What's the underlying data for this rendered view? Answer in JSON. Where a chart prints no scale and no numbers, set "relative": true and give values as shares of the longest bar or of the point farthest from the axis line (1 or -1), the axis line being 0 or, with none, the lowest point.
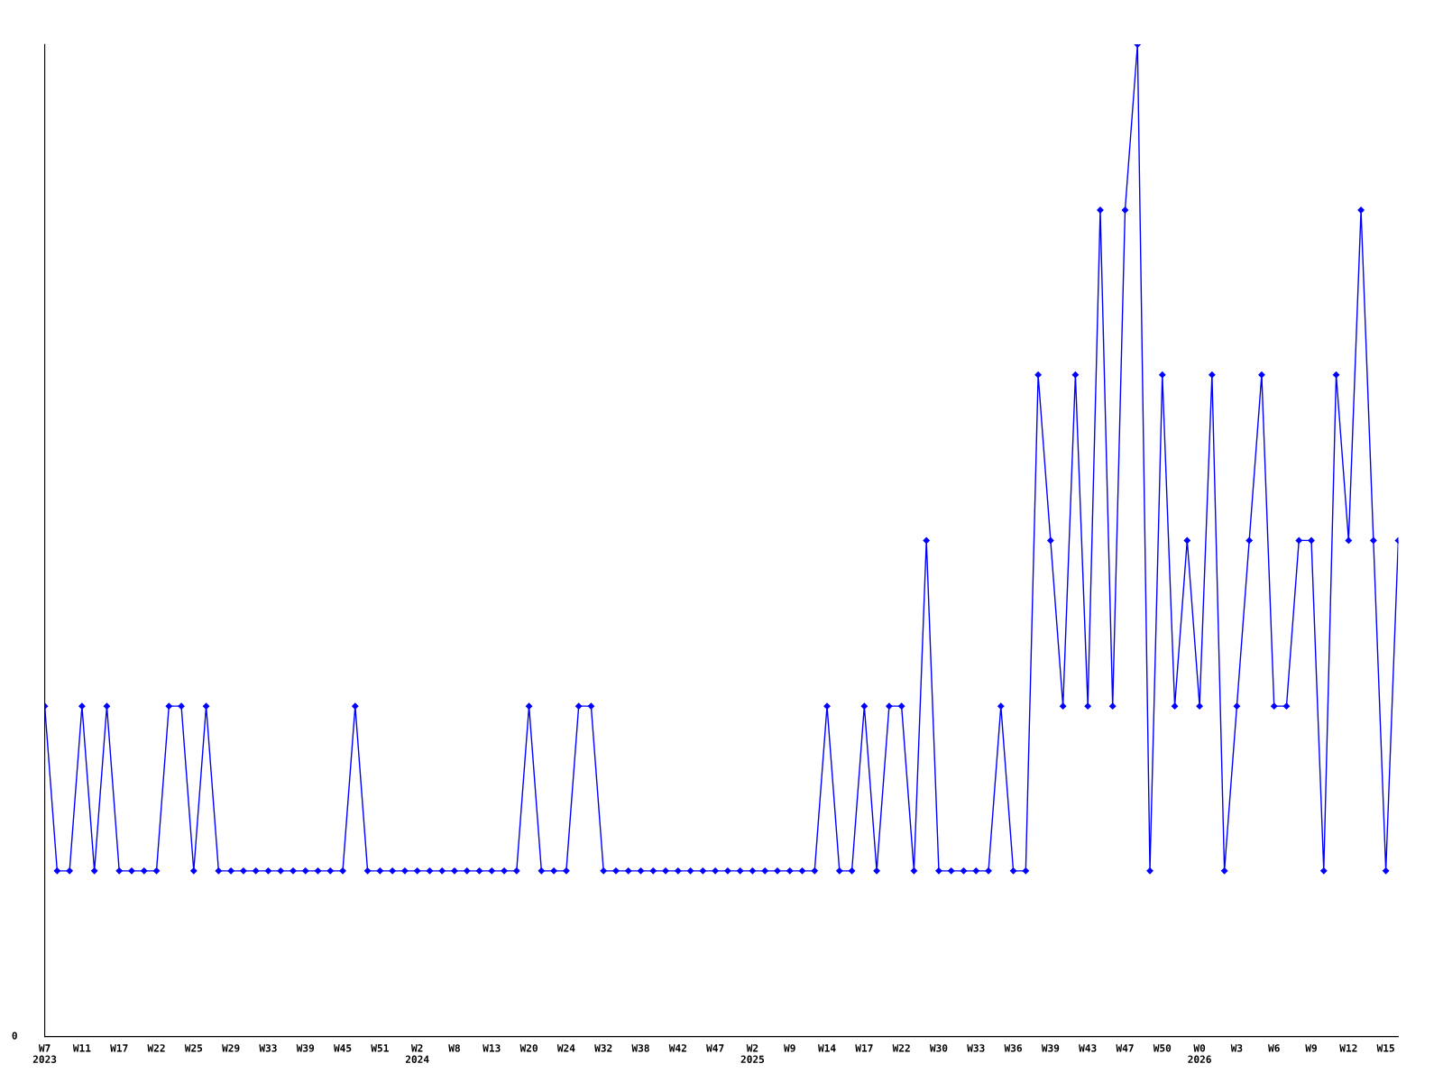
{
  "chart_data": {
    "type": "line",
    "relative": true,
    "annotations": [
      "0"
    ],
    "categories": [
      "W7\n2023",
      null,
      null,
      "W11",
      null,
      null,
      "W17",
      null,
      null,
      "W22",
      null,
      null,
      "W25",
      null,
      null,
      "W29",
      null,
      null,
      "W33",
      null,
      null,
      "W39",
      null,
      null,
      "W45",
      null,
      null,
      "W51",
      null,
      null,
      "W2\n2024",
      null,
      null,
      "W8",
      null,
      null,
      "W13",
      null,
      null,
      "W20",
      null,
      null,
      "W24",
      null,
      null,
      "W32",
      null,
      null,
      "W38",
      null,
      null,
      "W42",
      null,
      null,
      "W47",
      null,
      null,
      "W2\n2025",
      null,
      null,
      "W9",
      null,
      null,
      "W14",
      null,
      null,
      "W17",
      null,
      null,
      "W22",
      null,
      null,
      "W30",
      null,
      null,
      "W33",
      null,
      null,
      "W36",
      null,
      null,
      "W39",
      null,
      null,
      "W43",
      null,
      null,
      "W47",
      null,
      null,
      "W50",
      null,
      null,
      "W0\n2026",
      null,
      null,
      "W3",
      null,
      null,
      "W6",
      null,
      null,
      "W9",
      null,
      null,
      "W12",
      null,
      null,
      "W15",
      null
    ],
    "series": [
      {
        "color": "#0000ff",
        "values": [
          0.333,
          0.167,
          0.167,
          0.333,
          0.167,
          0.333,
          0.167,
          0.167,
          0.167,
          0.167,
          0.333,
          0.333,
          0.167,
          0.333,
          0.167,
          0.167,
          0.167,
          0.167,
          0.167,
          0.167,
          0.167,
          0.167,
          0.167,
          0.167,
          0.167,
          0.333,
          0.167,
          0.167,
          0.167,
          0.167,
          0.167,
          0.167,
          0.167,
          0.167,
          0.167,
          0.167,
          0.167,
          0.167,
          0.167,
          0.333,
          0.167,
          0.167,
          0.167,
          0.333,
          0.333,
          0.167,
          0.167,
          0.167,
          0.167,
          0.167,
          0.167,
          0.167,
          0.167,
          0.167,
          0.167,
          0.167,
          0.167,
          0.167,
          0.167,
          0.167,
          0.167,
          0.167,
          0.167,
          0.333,
          0.167,
          0.167,
          0.333,
          0.167,
          0.333,
          0.333,
          0.167,
          0.5,
          0.167,
          0.167,
          0.167,
          0.167,
          0.167,
          0.333,
          0.167,
          0.167,
          0.667,
          0.5,
          0.333,
          0.667,
          0.333,
          0.833,
          0.333,
          0.833,
          1,
          0.167,
          0.667,
          0.333,
          0.5,
          0.333,
          0.667,
          0.167,
          0.333,
          0.5,
          0.667,
          0.333,
          0.333,
          0.5,
          0.5,
          0.167,
          0.667,
          0.5,
          0.833,
          0.5,
          0.167,
          0.5
        ]
      }
    ],
    "marker": "diamond",
    "line_style": "solid",
    "grid": false,
    "legend": false
  }
}
